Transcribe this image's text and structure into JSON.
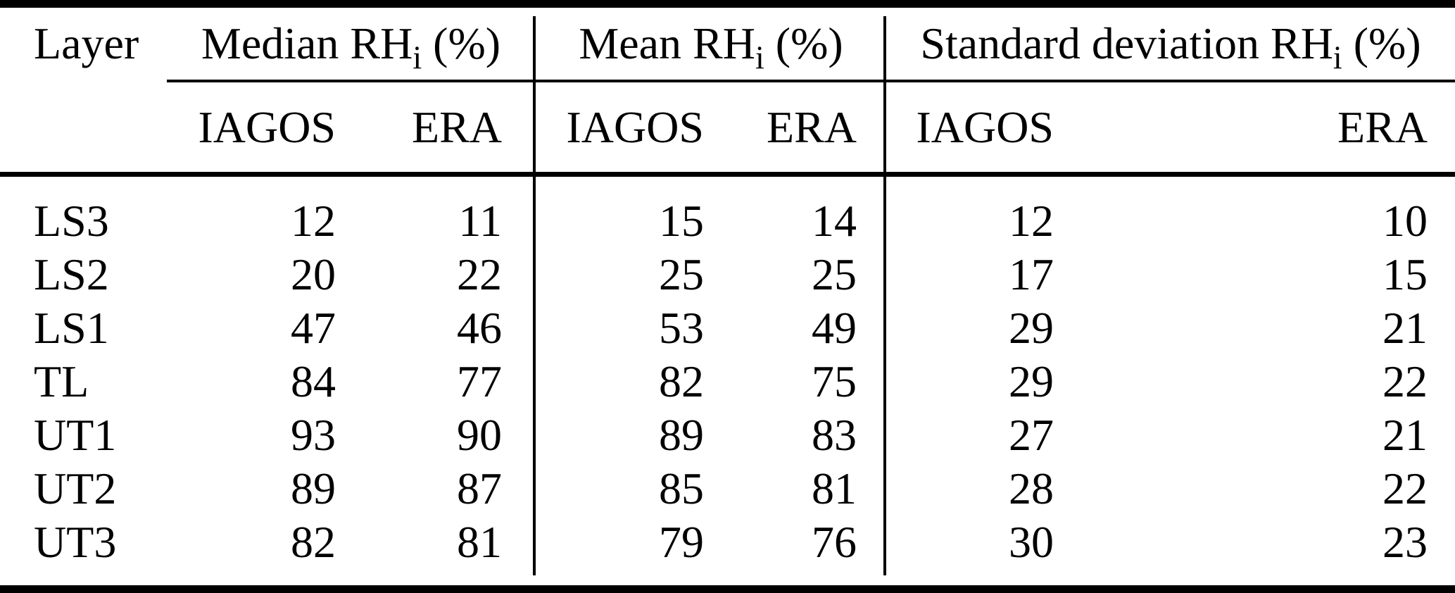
{
  "table": {
    "layer_header": "Layer",
    "groups": [
      {
        "pre": "Median RH",
        "sub": "i",
        "post": " (%)"
      },
      {
        "pre": "Mean RH",
        "sub": "i",
        "post": " (%)"
      },
      {
        "pre": "Standard deviation RH",
        "sub": "i",
        "post": " (%)"
      }
    ],
    "subheaders": [
      "IAGOS",
      "ERA",
      "IAGOS",
      "ERA",
      "IAGOS",
      "ERA"
    ],
    "rows": [
      {
        "layer": "LS3",
        "values": [
          "12",
          "11",
          "15",
          "14",
          "12",
          "10"
        ]
      },
      {
        "layer": "LS2",
        "values": [
          "20",
          "22",
          "25",
          "25",
          "17",
          "15"
        ]
      },
      {
        "layer": "LS1",
        "values": [
          "47",
          "46",
          "53",
          "49",
          "29",
          "21"
        ]
      },
      {
        "layer": "TL",
        "values": [
          "84",
          "77",
          "82",
          "75",
          "29",
          "22"
        ]
      },
      {
        "layer": "UT1",
        "values": [
          "93",
          "90",
          "89",
          "83",
          "27",
          "21"
        ]
      },
      {
        "layer": "UT2",
        "values": [
          "89",
          "87",
          "85",
          "81",
          "28",
          "22"
        ]
      },
      {
        "layer": "UT3",
        "values": [
          "82",
          "81",
          "79",
          "76",
          "30",
          "23"
        ]
      }
    ]
  },
  "colors": {
    "text": "#000000",
    "rule": "#000000",
    "background": "#ffffff"
  }
}
